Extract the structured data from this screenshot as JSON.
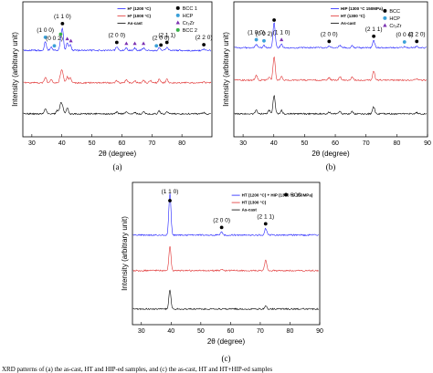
{
  "chart_data": [
    {
      "type": "line",
      "panel": "(a)",
      "xlabel": "2θ (degree)",
      "ylabel": "Intensity (arbitrary unit)",
      "xlim": [
        27,
        90
      ],
      "xticks": [
        30,
        40,
        50,
        60,
        70,
        80
      ],
      "series": [
        {
          "name": "H* (1200 °C)",
          "color": "#2020ff",
          "offset": 2.0,
          "peaks": [
            [
              34.5,
              0.75
            ],
            [
              36.5,
              0.25
            ],
            [
              39.6,
              0.6
            ],
            [
              40.2,
              1.8
            ],
            [
              41.8,
              0.6
            ],
            [
              42.8,
              0.5
            ],
            [
              58.3,
              0.3
            ],
            [
              61.5,
              0.2
            ],
            [
              64.3,
              0.2
            ],
            [
              67.2,
              0.2
            ],
            [
              72.5,
              0.2
            ],
            [
              75.0,
              0.3
            ],
            [
              87.3,
              0.1
            ]
          ]
        },
        {
          "name": "H* (1000 °C)",
          "color": "#e03030",
          "offset": 1.0,
          "peaks": [
            [
              34.5,
              0.5
            ],
            [
              36.5,
              0.3
            ],
            [
              39.6,
              0.65
            ],
            [
              40.2,
              0.9
            ],
            [
              41.8,
              0.5
            ],
            [
              42.8,
              0.45
            ],
            [
              58.3,
              0.2
            ],
            [
              61.5,
              0.25
            ],
            [
              64.3,
              0.2
            ],
            [
              67.2,
              0.2
            ],
            [
              69.5,
              0.2
            ],
            [
              72.5,
              0.3
            ],
            [
              75.0,
              0.3
            ],
            [
              87.3,
              0.1
            ]
          ]
        },
        {
          "name": "As-cast",
          "color": "#000000",
          "offset": 0.0,
          "peaks": [
            [
              34.5,
              0.45
            ],
            [
              38.5,
              0.3
            ],
            [
              39.6,
              0.8
            ],
            [
              40.2,
              0.6
            ],
            [
              41.8,
              0.55
            ],
            [
              58.3,
              0.15
            ],
            [
              61.5,
              0.2
            ],
            [
              64.3,
              0.15
            ],
            [
              67.2,
              0.15
            ],
            [
              72.5,
              0.25
            ],
            [
              75.0,
              0.2
            ],
            [
              87.3,
              0.1
            ]
          ]
        }
      ],
      "markers_legend": [
        {
          "label": "BCC 1",
          "symbol": "circle",
          "color": "#000000"
        },
        {
          "label": "HCP",
          "symbol": "circle",
          "color": "#3aa0d8"
        },
        {
          "label": "Cr₂Zr",
          "symbol": "triangle",
          "color": "#7a2fb0"
        },
        {
          "label": "BCC 2",
          "symbol": "circle",
          "color": "#38b048"
        }
      ],
      "peak_labels": [
        {
          "text": "(1 1 0)",
          "x": 40.2
        },
        {
          "text": "(1 0 0)",
          "x": 34.5
        },
        {
          "text": "(0 0 2)",
          "x": 37.5
        },
        {
          "text": "(2 0 0)",
          "x": 58.3
        },
        {
          "text": "(2 0 0)",
          "x": 73.0
        },
        {
          "text": "(2 1 1)",
          "x": 75.0
        },
        {
          "text": "(2 2 0)",
          "x": 87.3
        }
      ],
      "markers": [
        {
          "x": 34.5,
          "symbol": "circle",
          "color": "#3aa0d8"
        },
        {
          "x": 37.5,
          "symbol": "circle",
          "color": "#3aa0d8"
        },
        {
          "x": 39.6,
          "symbol": "circle",
          "color": "#38b048"
        },
        {
          "x": 40.2,
          "symbol": "circle",
          "color": "#000000"
        },
        {
          "x": 41.8,
          "symbol": "triangle",
          "color": "#7a2fb0"
        },
        {
          "x": 43.0,
          "symbol": "triangle",
          "color": "#7a2fb0"
        },
        {
          "x": 58.3,
          "symbol": "circle",
          "color": "#000000"
        },
        {
          "x": 61.5,
          "symbol": "triangle",
          "color": "#7a2fb0"
        },
        {
          "x": 64.3,
          "symbol": "triangle",
          "color": "#7a2fb0"
        },
        {
          "x": 67.2,
          "symbol": "triangle",
          "color": "#7a2fb0"
        },
        {
          "x": 71.5,
          "symbol": "circle",
          "color": "#3aa0d8"
        },
        {
          "x": 73.0,
          "symbol": "circle",
          "color": "#000000"
        },
        {
          "x": 75.0,
          "symbol": "circle",
          "color": "#000000"
        },
        {
          "x": 87.3,
          "symbol": "circle",
          "color": "#000000"
        }
      ]
    },
    {
      "type": "line",
      "panel": "(b)",
      "xlabel": "2θ (degree)",
      "ylabel": "Intensity (arbitrary unit)",
      "xlim": [
        27,
        90
      ],
      "xticks": [
        30,
        40,
        50,
        60,
        70,
        80,
        90
      ],
      "series": [
        {
          "name": "HIP (1300 °C 150MPa)",
          "color": "#2020ff",
          "offset": 2.0,
          "peaks": [
            [
              34.3,
              0.3
            ],
            [
              36.8,
              0.2
            ],
            [
              40.1,
              2.2
            ],
            [
              42.5,
              0.3
            ],
            [
              58.0,
              0.15
            ],
            [
              61.5,
              0.2
            ],
            [
              65.5,
              0.15
            ],
            [
              72.5,
              0.6
            ],
            [
              82.5,
              0.1
            ],
            [
              86.5,
              0.15
            ]
          ]
        },
        {
          "name": "HT (1300 °C)",
          "color": "#e03030",
          "offset": 1.0,
          "peaks": [
            [
              34.3,
              0.4
            ],
            [
              38.5,
              0.25
            ],
            [
              40.1,
              2.0
            ],
            [
              42.5,
              0.35
            ],
            [
              58.0,
              0.2
            ],
            [
              61.5,
              0.3
            ],
            [
              65.5,
              0.25
            ],
            [
              72.5,
              0.75
            ],
            [
              86.5,
              0.1
            ]
          ]
        },
        {
          "name": "As-cast",
          "color": "#000000",
          "offset": 0.0,
          "peaks": [
            [
              34.3,
              0.35
            ],
            [
              38.5,
              0.3
            ],
            [
              40.1,
              1.6
            ],
            [
              42.5,
              0.3
            ],
            [
              58.0,
              0.15
            ],
            [
              61.5,
              0.2
            ],
            [
              65.5,
              0.2
            ],
            [
              72.5,
              0.6
            ],
            [
              86.5,
              0.1
            ]
          ]
        }
      ],
      "markers_legend": [
        {
          "label": "BCC",
          "symbol": "circle",
          "color": "#000000"
        },
        {
          "label": "HCP",
          "symbol": "circle",
          "color": "#3aa0d8"
        },
        {
          "label": "Cr₂Zr",
          "symbol": "triangle",
          "color": "#7a2fb0"
        }
      ],
      "peak_labels": [
        {
          "text": "(1 1 0)",
          "x": 42.5
        },
        {
          "text": "(1 0 0)",
          "x": 34.3
        },
        {
          "text": "(0 0 2)",
          "x": 36.8
        },
        {
          "text": "(2 0 0)",
          "x": 58.0
        },
        {
          "text": "(2 1 1)",
          "x": 72.5
        },
        {
          "text": "(0 0 4)",
          "x": 82.5
        },
        {
          "text": "(2 2 0)",
          "x": 86.5
        }
      ],
      "markers": [
        {
          "x": 34.3,
          "symbol": "circle",
          "color": "#3aa0d8"
        },
        {
          "x": 36.8,
          "symbol": "circle",
          "color": "#3aa0d8"
        },
        {
          "x": 40.1,
          "symbol": "circle",
          "color": "#000000"
        },
        {
          "x": 42.5,
          "symbol": "triangle",
          "color": "#7a2fb0"
        },
        {
          "x": 58.0,
          "symbol": "circle",
          "color": "#000000"
        },
        {
          "x": 72.5,
          "symbol": "circle",
          "color": "#000000"
        },
        {
          "x": 82.5,
          "symbol": "circle",
          "color": "#3aa0d8"
        },
        {
          "x": 86.5,
          "symbol": "circle",
          "color": "#000000"
        }
      ]
    },
    {
      "type": "line",
      "panel": "(c)",
      "xlabel": "2θ (degree)",
      "ylabel": "Intensity (arbitrary unit)",
      "xlim": [
        27,
        90
      ],
      "xticks": [
        30,
        40,
        50,
        60,
        70,
        80,
        90
      ],
      "series": [
        {
          "name": "HT (1200 °C) + HIP (1300 °C 150MPa)",
          "color": "#2020ff",
          "offset": 2.0,
          "peaks": [
            [
              39.6,
              3.5
            ],
            [
              57.0,
              0.25
            ],
            [
              71.8,
              0.55
            ]
          ]
        },
        {
          "name": "HT (1300 °C)",
          "color": "#e03030",
          "offset": 1.0,
          "peaks": [
            [
              39.6,
              2.0
            ],
            [
              57.0,
              0.1
            ],
            [
              71.8,
              0.85
            ]
          ]
        },
        {
          "name": "As-cast",
          "color": "#000000",
          "offset": 0.0,
          "peaks": [
            [
              39.6,
              1.6
            ],
            [
              71.8,
              0.25
            ]
          ]
        }
      ],
      "markers_legend": [
        {
          "label": "BCC",
          "symbol": "circle",
          "color": "#000000"
        }
      ],
      "peak_labels": [
        {
          "text": "(1 1 0)",
          "x": 39.6
        },
        {
          "text": "(2 0 0)",
          "x": 57.0
        },
        {
          "text": "(2 1 1)",
          "x": 71.8
        }
      ],
      "markers": [
        {
          "x": 39.6,
          "symbol": "circle",
          "color": "#000000"
        },
        {
          "x": 57.0,
          "symbol": "circle",
          "color": "#000000"
        },
        {
          "x": 71.8,
          "symbol": "circle",
          "color": "#000000"
        }
      ]
    }
  ],
  "caption": "XRD patterns of (a) the as-cast, HT and HIP-ed samples, and (c) the as-cast, HT and HT+HIP-ed samples"
}
